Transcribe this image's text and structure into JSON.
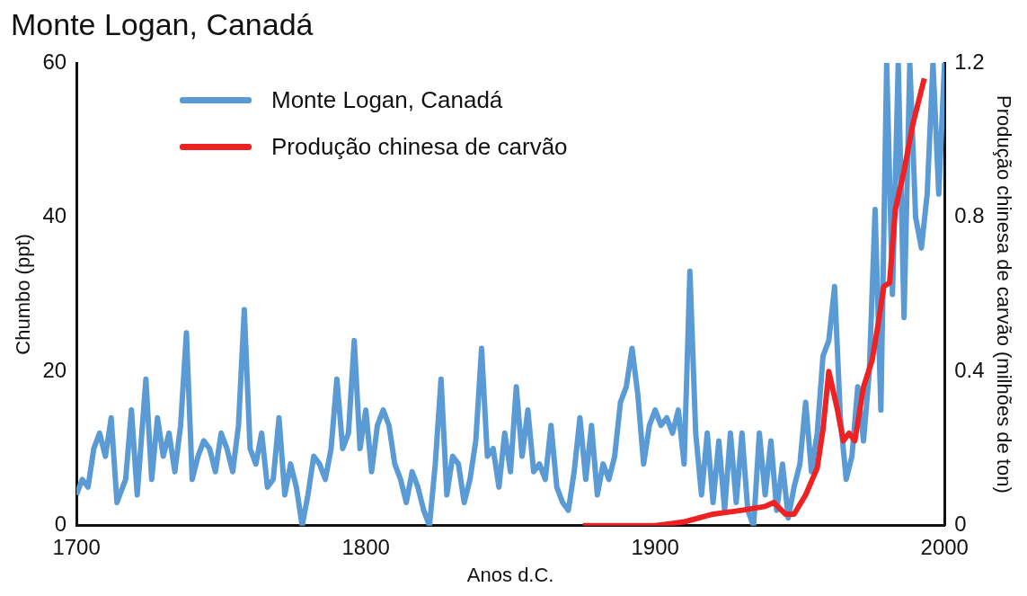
{
  "chart_data": {
    "type": "line",
    "title": "Monte Logan, Canadá",
    "xlabel": "Anos d.C.",
    "ylabel": "Chumbo (ppt)",
    "y2label": "Produção chinesa de carvão (milhões de ton)",
    "xlim": [
      1700,
      2000
    ],
    "xticks": [
      1700,
      1800,
      1900,
      2000
    ],
    "ylim": [
      0,
      60
    ],
    "yticks": [
      0,
      20,
      40,
      60
    ],
    "y2lim": [
      0,
      1.2
    ],
    "y2ticks": [
      {
        "value": 0,
        "label": "0"
      },
      {
        "value": 0.4,
        "label": "0.4"
      },
      {
        "value": 0.8,
        "label": "0.8"
      },
      {
        "value": 1.2,
        "label": "1.2"
      }
    ],
    "grid": false,
    "legend": "top left",
    "marker": "none",
    "line_style": "solid",
    "series": [
      {
        "name": "Monte Logan, Canadá",
        "color": "#5b9bd5",
        "x": [
          1700,
          1702,
          1704,
          1706,
          1708,
          1710,
          1712,
          1714,
          1717,
          1719,
          1721,
          1724,
          1726,
          1728,
          1730,
          1732,
          1734,
          1736,
          1738,
          1740,
          1742,
          1744,
          1746,
          1748,
          1750,
          1752,
          1754,
          1756,
          1758,
          1760,
          1762,
          1764,
          1766,
          1768,
          1770,
          1772,
          1774,
          1776,
          1778,
          1780,
          1782,
          1784,
          1786,
          1788,
          1790,
          1792,
          1794,
          1796,
          1798,
          1800,
          1802,
          1804,
          1806,
          1808,
          1810,
          1812,
          1814,
          1816,
          1818,
          1820,
          1822,
          1824,
          1826,
          1828,
          1830,
          1832,
          1834,
          1836,
          1838,
          1840,
          1842,
          1844,
          1846,
          1848,
          1850,
          1852,
          1854,
          1856,
          1858,
          1860,
          1862,
          1864,
          1866,
          1868,
          1870,
          1872,
          1874,
          1876,
          1878,
          1880,
          1882,
          1884,
          1886,
          1888,
          1890,
          1892,
          1894,
          1896,
          1898,
          1900,
          1902,
          1904,
          1906,
          1908,
          1910,
          1912,
          1914,
          1916,
          1918,
          1920,
          1922,
          1924,
          1926,
          1928,
          1930,
          1932,
          1934,
          1936,
          1938,
          1940,
          1942,
          1944,
          1946,
          1948,
          1950,
          1952,
          1954,
          1956,
          1958,
          1960,
          1962,
          1964,
          1966,
          1968,
          1970,
          1972,
          1974,
          1976,
          1978,
          1980,
          1982,
          1984,
          1986,
          1988,
          1990,
          1992,
          1994,
          1996,
          1998,
          2000
        ],
        "values": [
          4,
          6,
          5,
          10,
          12,
          9,
          14,
          3,
          6,
          15,
          4,
          19,
          6,
          14,
          9,
          12,
          7,
          13,
          25,
          6,
          9,
          11,
          10,
          7,
          12,
          10,
          7,
          13,
          28,
          10,
          8,
          12,
          5,
          6,
          14,
          4,
          8,
          5,
          0,
          4,
          9,
          8,
          6,
          10,
          19,
          10,
          12,
          24,
          10,
          15,
          7,
          13,
          15,
          13,
          8,
          6,
          3,
          7,
          5,
          2,
          0,
          8,
          19,
          4,
          9,
          8,
          3,
          6,
          11,
          23,
          9,
          10,
          5,
          12,
          7,
          18,
          9,
          15,
          7,
          8,
          6,
          13,
          5,
          3,
          2,
          7,
          14,
          6,
          13,
          4,
          8,
          6,
          9,
          16,
          18,
          23,
          17,
          8,
          13,
          15,
          13,
          14,
          12,
          15,
          8,
          33,
          12,
          4,
          12,
          3,
          11,
          2,
          12,
          3,
          12,
          2,
          0,
          12,
          4,
          11,
          2,
          8,
          1,
          5,
          8,
          16,
          7,
          12,
          22,
          24,
          31,
          14,
          6,
          9,
          18,
          11,
          20,
          41,
          15,
          60,
          30,
          60,
          27,
          60,
          40,
          36,
          43,
          60,
          43,
          60
        ]
      },
      {
        "name": "Produção chinesa de carvão",
        "color": "#ee2222",
        "axis": "y2",
        "x": [
          1875,
          1900,
          1905,
          1910,
          1920,
          1930,
          1938,
          1941,
          1945,
          1948,
          1952,
          1956,
          1958,
          1960,
          1963,
          1965,
          1967,
          1969,
          1972,
          1975,
          1977,
          1979,
          1981,
          1983,
          1986,
          1989,
          1991,
          1993
        ],
        "values": [
          0,
          0,
          0.005,
          0.01,
          0.03,
          0.04,
          0.05,
          0.06,
          0.03,
          0.03,
          0.08,
          0.15,
          0.25,
          0.4,
          0.3,
          0.22,
          0.24,
          0.22,
          0.36,
          0.43,
          0.52,
          0.62,
          0.63,
          0.82,
          0.92,
          1.04,
          1.1,
          1.16
        ]
      }
    ]
  }
}
